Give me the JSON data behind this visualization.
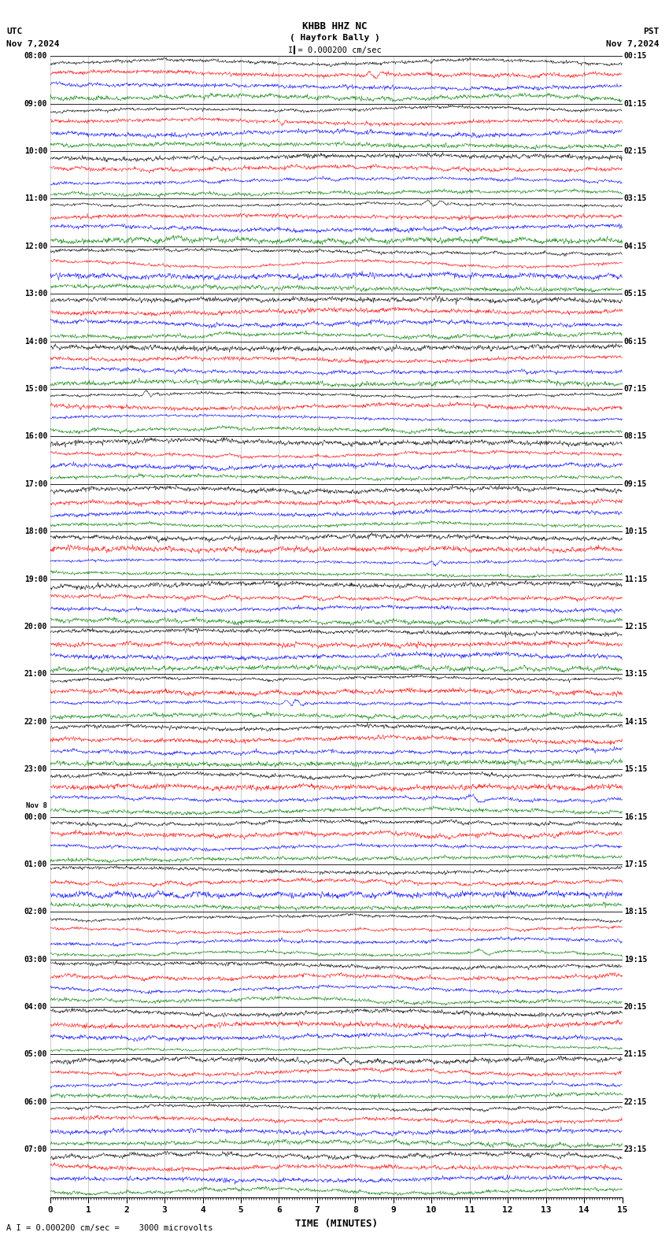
{
  "title_line1": "KHBB HHZ NC",
  "title_line2": "( Hayfork Bally )",
  "scale_label": "I = 0.000200 cm/sec",
  "utc_label": "UTC",
  "pst_label": "PST",
  "date_left": "Nov 7,2024",
  "date_right": "Nov 7,2024",
  "footer": "A I = 0.000200 cm/sec =    3000 microvolts",
  "xlabel": "TIME (MINUTES)",
  "xmin": 0,
  "xmax": 15,
  "xticks": [
    0,
    1,
    2,
    3,
    4,
    5,
    6,
    7,
    8,
    9,
    10,
    11,
    12,
    13,
    14,
    15
  ],
  "bgcolor": "#ffffff",
  "trace_colors": [
    "black",
    "red",
    "blue",
    "green"
  ],
  "utc_times": [
    "08:00",
    "09:00",
    "10:00",
    "11:00",
    "12:00",
    "13:00",
    "14:00",
    "15:00",
    "16:00",
    "17:00",
    "18:00",
    "19:00",
    "20:00",
    "21:00",
    "22:00",
    "23:00",
    "Nov 8\n00:00",
    "01:00",
    "02:00",
    "03:00",
    "04:00",
    "05:00",
    "06:00",
    "07:00"
  ],
  "pst_times": [
    "00:15",
    "01:15",
    "02:15",
    "03:15",
    "04:15",
    "05:15",
    "06:15",
    "07:15",
    "08:15",
    "09:15",
    "10:15",
    "11:15",
    "12:15",
    "13:15",
    "14:15",
    "15:15",
    "16:15",
    "17:15",
    "18:15",
    "19:15",
    "20:15",
    "21:15",
    "22:15",
    "23:15"
  ],
  "n_groups": 24,
  "traces_per_group": 4,
  "fig_width": 8.5,
  "fig_height": 15.84,
  "trace_amplitude": 0.42
}
